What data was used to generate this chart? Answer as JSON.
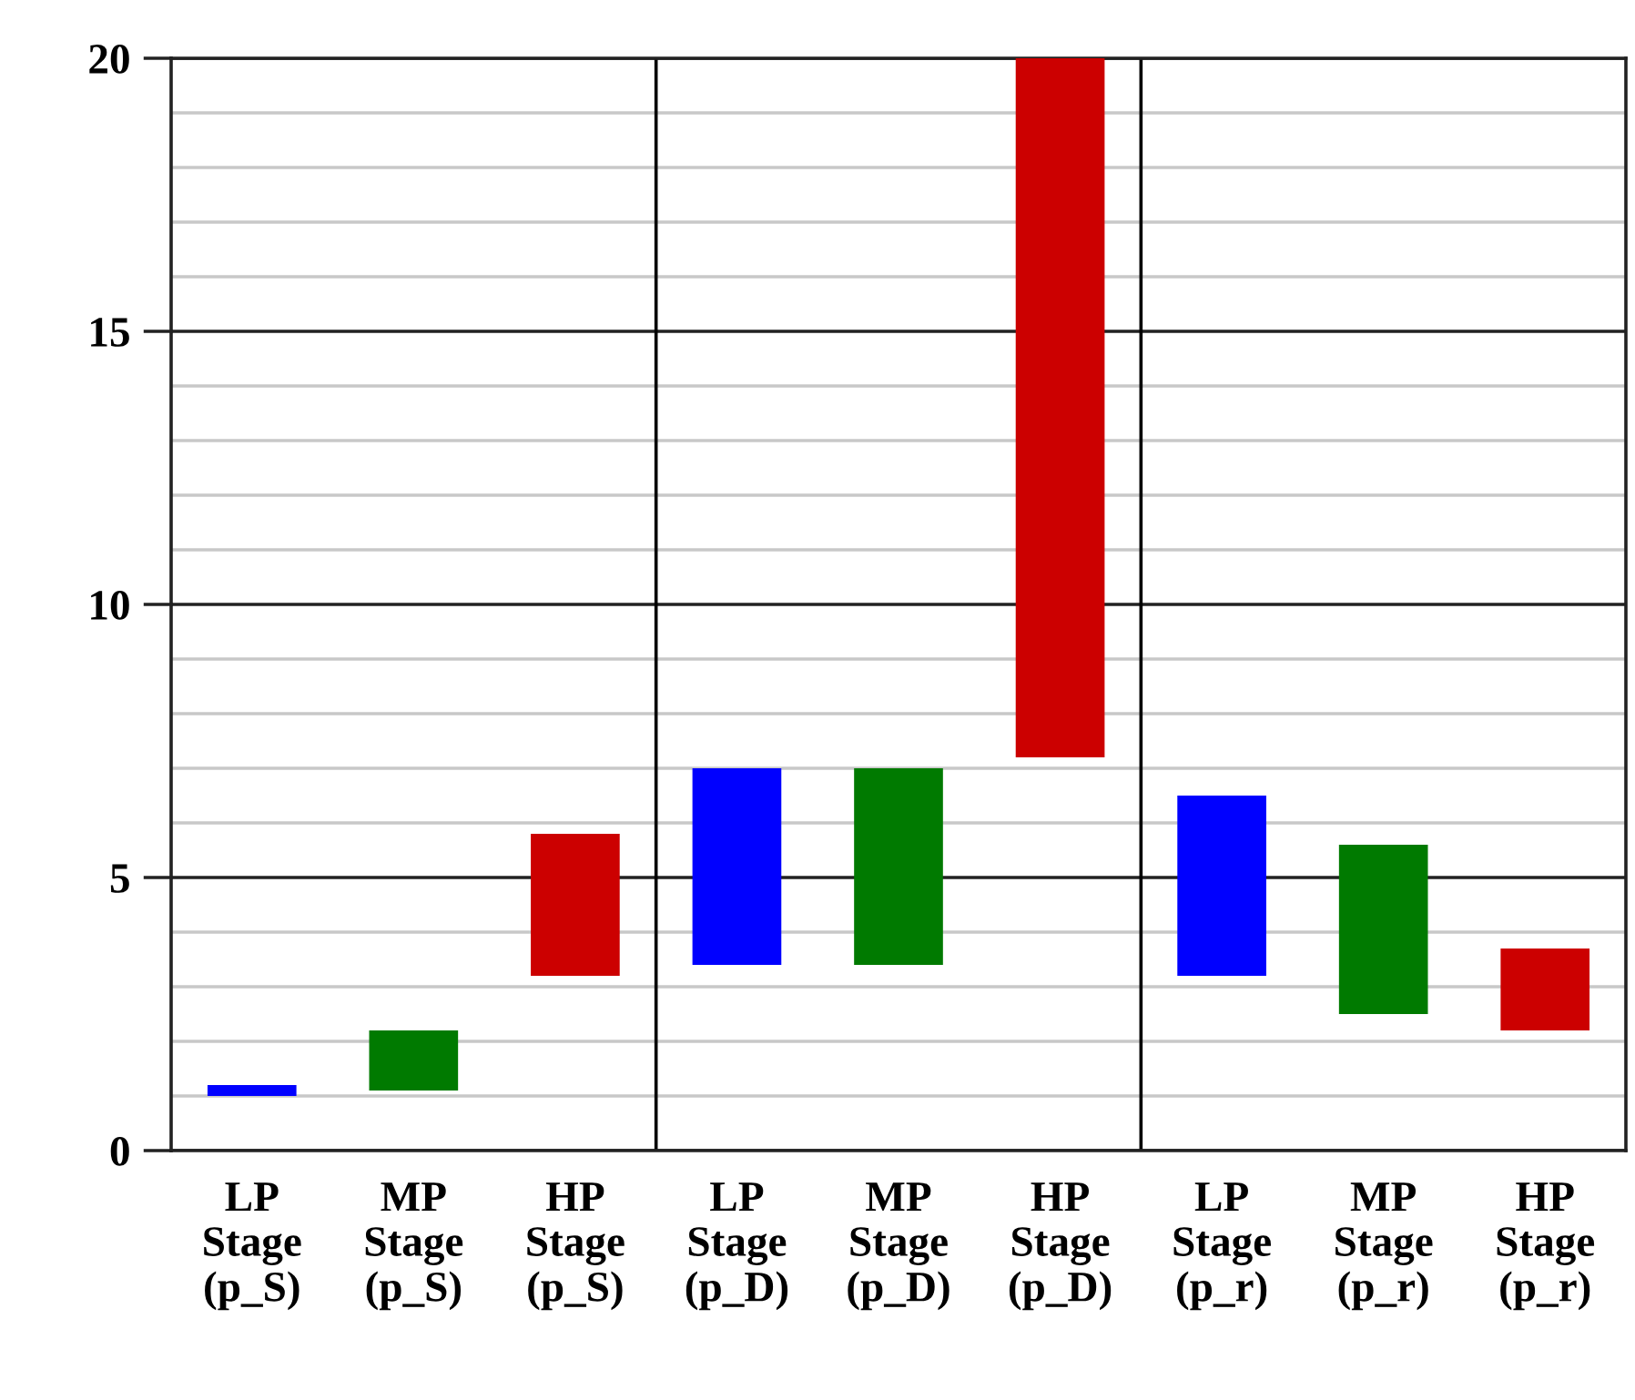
{
  "chart_data": {
    "type": "bar",
    "categories": [
      "LP\nStage\n(p_S)",
      "MP\nStage\n(p_S)",
      "HP\nStage\n(p_S)",
      "LP\nStage\n(p_D)",
      "MP\nStage\n(p_D)",
      "HP\nStage\n(p_D)",
      "LP\nStage\n(p_r)",
      "MP\nStage\n(p_r)",
      "HP\nStage\n(p_r)"
    ],
    "values": [
      0.2,
      1.1,
      2.6,
      3.6,
      3.6,
      12.8,
      3.3,
      3.1,
      1.5
    ],
    "base": [
      1.0,
      1.1,
      3.2,
      3.4,
      3.4,
      7.2,
      3.2,
      2.5,
      2.2
    ],
    "colors": [
      "#0000ff",
      "#007a00",
      "#cc0000",
      "#0000ff",
      "#007a00",
      "#cc0000",
      "#0000ff",
      "#007a00",
      "#cc0000"
    ],
    "ylim": [
      0,
      20
    ],
    "yticks": [
      0,
      {
        "value": 1,
        "label": null
      },
      {
        "value": 2,
        "label": null
      },
      {
        "value": 3,
        "label": null
      },
      {
        "value": 4,
        "label": null
      },
      5,
      {
        "value": 6,
        "label": null
      },
      {
        "value": 7,
        "label": null
      },
      {
        "value": 8,
        "label": null
      },
      {
        "value": 9,
        "label": null
      },
      10,
      {
        "value": 11,
        "label": null
      },
      {
        "value": 12,
        "label": null
      },
      {
        "value": 13,
        "label": null
      },
      {
        "value": 14,
        "label": null
      },
      15,
      {
        "value": 16,
        "label": null
      },
      {
        "value": 17,
        "label": null
      },
      {
        "value": 18,
        "label": null
      },
      {
        "value": 19,
        "label": null
      },
      20
    ],
    "grid": "y"
  }
}
